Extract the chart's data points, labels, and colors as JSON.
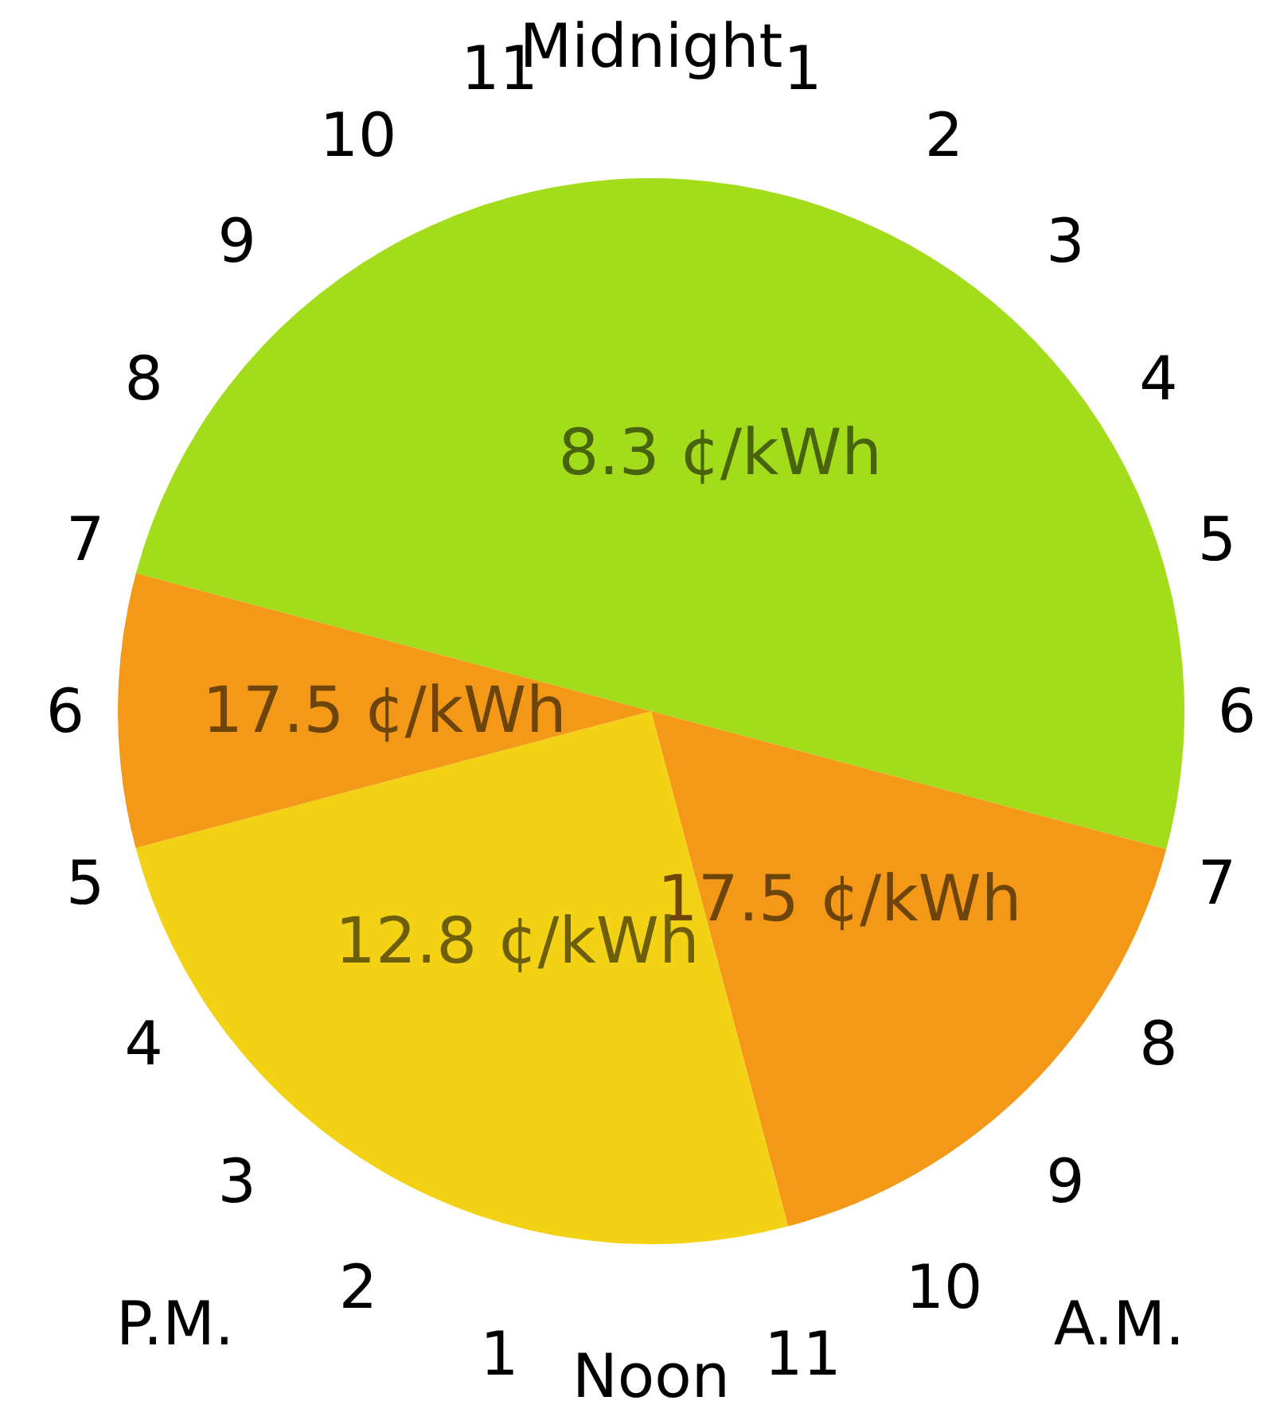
{
  "chart_data": {
    "type": "pie",
    "categories": [
      "8.3 ¢/kWh",
      "17.5 ¢/kWh",
      "12.8 ¢/kWh",
      "17.5 ¢/kWh"
    ],
    "values": [
      50,
      16.7,
      25,
      8.3
    ],
    "colors": [
      "#a3dc1a",
      "#f39817",
      "#f3d215",
      "#f39817"
    ],
    "annotations": [
      "Midnight",
      "1",
      "2",
      "3",
      "4",
      "5",
      "6",
      "7",
      "8",
      "9",
      "10",
      "11",
      "Noon",
      "1",
      "2",
      "3",
      "4",
      "5",
      "6",
      "7",
      "8",
      "9",
      "10",
      "11",
      "A.M.",
      "P.M."
    ]
  }
}
